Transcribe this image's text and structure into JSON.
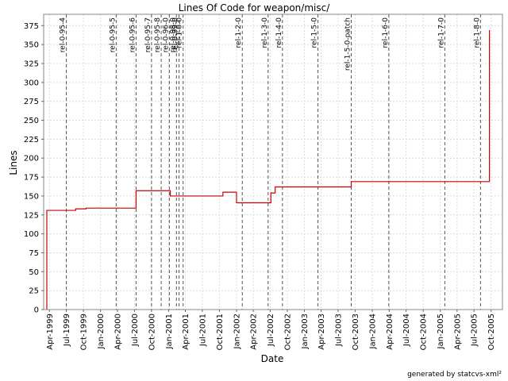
{
  "chart_data": {
    "type": "line",
    "title": "Lines Of Code for weapon/misc/",
    "xlabel": "Date",
    "ylabel": "Lines",
    "ylim": [
      0,
      390
    ],
    "xlim": [
      "1999-03-01",
      "2005-12-01"
    ],
    "yticks": [
      0,
      25,
      50,
      75,
      100,
      125,
      150,
      175,
      200,
      225,
      250,
      275,
      300,
      325,
      350,
      375
    ],
    "xticks": [
      {
        "date": "1999-04-01",
        "label": "Apr-1999"
      },
      {
        "date": "1999-07-01",
        "label": "Jul-1999"
      },
      {
        "date": "1999-10-01",
        "label": "Oct-1999"
      },
      {
        "date": "2000-01-01",
        "label": "Jan-2000"
      },
      {
        "date": "2000-04-01",
        "label": "Apr-2000"
      },
      {
        "date": "2000-07-01",
        "label": "Jul-2000"
      },
      {
        "date": "2000-10-01",
        "label": "Oct-2000"
      },
      {
        "date": "2001-01-01",
        "label": "Jan-2001"
      },
      {
        "date": "2001-04-01",
        "label": "Apr-2001"
      },
      {
        "date": "2001-07-01",
        "label": "Jul-2001"
      },
      {
        "date": "2001-10-01",
        "label": "Oct-2001"
      },
      {
        "date": "2002-01-01",
        "label": "Jan-2002"
      },
      {
        "date": "2002-04-01",
        "label": "Apr-2002"
      },
      {
        "date": "2002-07-01",
        "label": "Jul-2002"
      },
      {
        "date": "2002-10-01",
        "label": "Oct-2002"
      },
      {
        "date": "2003-01-01",
        "label": "Jan-2003"
      },
      {
        "date": "2003-04-01",
        "label": "Apr-2003"
      },
      {
        "date": "2003-07-01",
        "label": "Jul-2003"
      },
      {
        "date": "2003-10-01",
        "label": "Oct-2003"
      },
      {
        "date": "2004-01-01",
        "label": "Jan-2004"
      },
      {
        "date": "2004-04-01",
        "label": "Apr-2004"
      },
      {
        "date": "2004-07-01",
        "label": "Jul-2004"
      },
      {
        "date": "2004-10-01",
        "label": "Oct-2004"
      },
      {
        "date": "2005-01-01",
        "label": "Jan-2005"
      },
      {
        "date": "2005-04-01",
        "label": "Apr-2005"
      },
      {
        "date": "2005-07-01",
        "label": "Jul-2005"
      },
      {
        "date": "2005-10-01",
        "label": "Oct-2005"
      }
    ],
    "grid": true,
    "series": [
      {
        "line_color": "#cc0000",
        "step": true,
        "points": [
          {
            "x": "1999-03-18",
            "y": 0
          },
          {
            "x": "1999-03-18",
            "y": 131
          },
          {
            "x": "1999-08-20",
            "y": 133
          },
          {
            "x": "1999-10-15",
            "y": 134
          },
          {
            "x": "2000-07-10",
            "y": 157
          },
          {
            "x": "2001-01-10",
            "y": 150
          },
          {
            "x": "2001-10-20",
            "y": 155
          },
          {
            "x": "2002-01-01",
            "y": 141
          },
          {
            "x": "2002-07-05",
            "y": 154
          },
          {
            "x": "2002-07-28",
            "y": 162
          },
          {
            "x": "2003-09-10",
            "y": 169
          },
          {
            "x": "2005-09-22",
            "y": 369
          }
        ],
        "end": "2005-09-22"
      }
    ],
    "release_markers": [
      {
        "date": "1999-07-01",
        "label": "rel-0-95-4"
      },
      {
        "date": "2000-03-25",
        "label": "rel-0-95-5"
      },
      {
        "date": "2000-07-10",
        "label": "rel-0-95-6"
      },
      {
        "date": "2000-10-01",
        "label": "rel-0-95-7"
      },
      {
        "date": "2000-11-22",
        "label": "rel-0-95-8"
      },
      {
        "date": "2001-01-05",
        "label": "rel-0-96-0"
      },
      {
        "date": "2001-02-12",
        "label": "rel-0-98-0"
      },
      {
        "date": "2001-02-26",
        "label": "rel-0-99-0"
      },
      {
        "date": "2001-03-20",
        "label": "rel-1-0-0"
      },
      {
        "date": "2002-02-01",
        "label": "rel-1-2-0"
      },
      {
        "date": "2002-06-20",
        "label": "rel-1-3-0"
      },
      {
        "date": "2002-09-05",
        "label": "rel-1-4-0"
      },
      {
        "date": "2003-03-15",
        "label": "rel-1-5-0"
      },
      {
        "date": "2003-09-10",
        "label": "rel-1-5-0-patch"
      },
      {
        "date": "2004-03-30",
        "label": "rel-1-6-0"
      },
      {
        "date": "2005-01-25",
        "label": "rel-1-7-0"
      },
      {
        "date": "2005-08-05",
        "label": "rel-1-8-0"
      }
    ]
  },
  "footer": {
    "credit": "generated by statcvs-xml²"
  }
}
